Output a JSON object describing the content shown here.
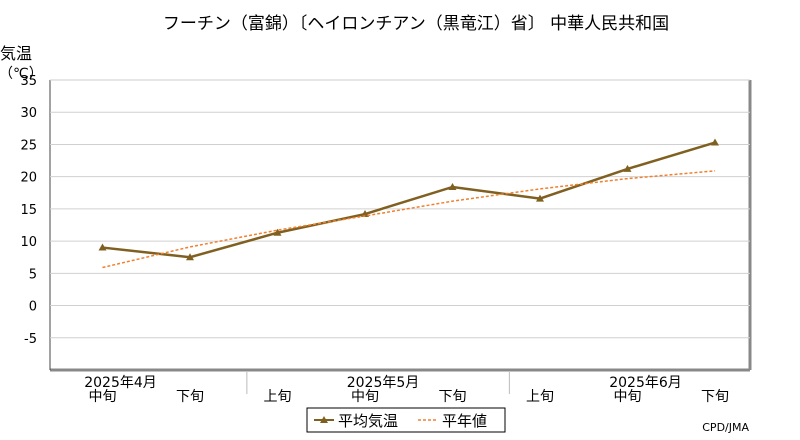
{
  "chart_data": {
    "type": "line",
    "title": "フーチン（富錦）〔ヘイロンチアン（黒竜江）省〕 中華人民共和国",
    "ylabel": "気温",
    "yunit": "（℃）",
    "ylim": [
      -10,
      35
    ],
    "yticks": [
      -5,
      0,
      5,
      10,
      15,
      20,
      25,
      30,
      35
    ],
    "categories": [
      "中旬",
      "下旬",
      "上旬",
      "中旬",
      "下旬",
      "上旬",
      "中旬",
      "下旬"
    ],
    "month_labels": [
      {
        "label": "2025年4月",
        "at": 0
      },
      {
        "label": "2025年5月",
        "at": 3
      },
      {
        "label": "2025年6月",
        "at": 6
      }
    ],
    "grid": true,
    "series": [
      {
        "name": "平均気温",
        "color": "#806020",
        "style": "solid",
        "marker": "triangle",
        "values": [
          9.0,
          7.5,
          11.3,
          14.2,
          18.4,
          16.6,
          21.2,
          25.3
        ]
      },
      {
        "name": "平年値",
        "color": "#f08030",
        "style": "dotted",
        "marker": "none",
        "values": [
          5.9,
          9.1,
          11.7,
          13.9,
          16.2,
          18.1,
          19.7,
          20.9
        ]
      }
    ],
    "legend_position": "bottom-center",
    "credit": "CPD/JMA"
  }
}
